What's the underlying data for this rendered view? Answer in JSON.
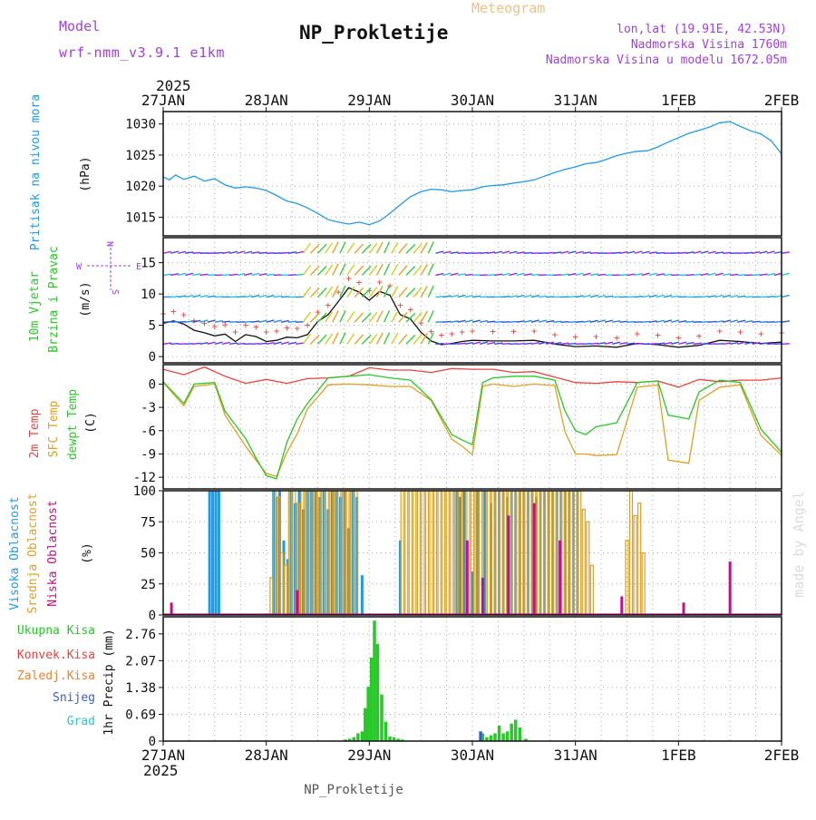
{
  "header": {
    "title": "NP_Prokletije",
    "subtitle": "Meteogram",
    "model_label": "Model",
    "model_name": "wrf-nmm_v3.9.1 e1km",
    "coords": "lon,lat (19.91E, 42.53N)",
    "elevation": "Nadmorska Visina 1760m",
    "model_elevation": "Nadmorska Visina u modelu 1672.05m",
    "footer": "NP_Prokletije",
    "credit": "made by Angel"
  },
  "colors": {
    "pressure": "#1e9be6",
    "temp2m": "#e8433f",
    "sfc": "#e0a020",
    "dewpt": "#28c828",
    "high_cloud": "#1e9be6",
    "mid_cloud": "#e0a020",
    "low_cloud": "#c0108c",
    "precip": "#28c828",
    "snow": "#3a5ad8",
    "gust_marker": "#e8433f",
    "wind_speed": "#111111",
    "title_purple": "#a040e0",
    "meteogram": "#f0c080"
  },
  "chart_data": [
    {
      "type": "line",
      "panel": "pressure",
      "ylabel": [
        "Pritisak na nivou mora",
        "(hPa)"
      ],
      "yticks": [
        "1030",
        "1025",
        "1020",
        "1015"
      ],
      "ylim": [
        1012,
        1032
      ],
      "series": [
        {
          "x": [
            0,
            0.06,
            0.12,
            0.2,
            0.3,
            0.4,
            0.5,
            0.6,
            0.7,
            0.8,
            0.9,
            1.0,
            1.1,
            1.2,
            1.3,
            1.4,
            1.5,
            1.6,
            1.7,
            1.8,
            1.9,
            2.0,
            2.1,
            2.2,
            2.3,
            2.4,
            2.5,
            2.6,
            2.7,
            2.8,
            2.9,
            3.0,
            3.1,
            3.2,
            3.3,
            3.4,
            3.5,
            3.6,
            3.7,
            3.8,
            3.9,
            4.0,
            4.1,
            4.2,
            4.3,
            4.4,
            4.5,
            4.6,
            4.7,
            4.8,
            4.9,
            5.0,
            5.1,
            5.2,
            5.3,
            5.4,
            5.5,
            5.6,
            5.7,
            5.8,
            5.9,
            6.0
          ],
          "values": [
            1021.5,
            1021.0,
            1021.8,
            1021.1,
            1021.6,
            1020.8,
            1021.2,
            1020.2,
            1019.7,
            1019.9,
            1019.7,
            1019.3,
            1018.5,
            1017.6,
            1017.2,
            1016.5,
            1015.6,
            1014.6,
            1014.2,
            1013.9,
            1014.2,
            1013.8,
            1014.4,
            1015.6,
            1017.0,
            1018.3,
            1019.1,
            1019.5,
            1019.4,
            1019.1,
            1019.3,
            1019.4,
            1019.9,
            1020.1,
            1020.2,
            1020.5,
            1020.7,
            1021.0,
            1021.6,
            1022.2,
            1022.7,
            1023.1,
            1023.6,
            1023.8,
            1024.3,
            1024.9,
            1025.3,
            1025.6,
            1025.7,
            1026.3,
            1027.1,
            1027.8,
            1028.5,
            1029.0,
            1029.5,
            1030.2,
            1030.4,
            1029.6,
            1028.9,
            1028.4,
            1027.3,
            1025.2
          ]
        }
      ]
    },
    {
      "type": "line",
      "panel": "wind",
      "ylabel": [
        "10m Vjetar",
        "Brzina i Pravac",
        "(m/s)"
      ],
      "yticks": [
        "15",
        "10",
        "5",
        "0"
      ],
      "ylim": [
        -1,
        19
      ],
      "compass": [
        "N",
        "E",
        "S",
        "W"
      ],
      "series": [
        {
          "name": "speed",
          "x": [
            0,
            0.1,
            0.2,
            0.3,
            0.4,
            0.5,
            0.6,
            0.7,
            0.8,
            0.9,
            1.0,
            1.1,
            1.2,
            1.3,
            1.4,
            1.5,
            1.6,
            1.7,
            1.8,
            1.9,
            2.0,
            2.1,
            2.2,
            2.3,
            2.4,
            2.5,
            2.6,
            2.7,
            2.8,
            2.9,
            3.0,
            3.2,
            3.4,
            3.6,
            3.8,
            4.0,
            4.2,
            4.4,
            4.6,
            4.8,
            5.0,
            5.2,
            5.4,
            5.6,
            5.8,
            6.0
          ],
          "values": [
            5.3,
            5.7,
            5.2,
            4.2,
            3.8,
            3.3,
            3.6,
            2.4,
            3.5,
            3.2,
            2.4,
            2.6,
            3.1,
            3.0,
            3.5,
            5.6,
            6.7,
            8.8,
            11.0,
            10.3,
            9.0,
            10.4,
            9.8,
            6.7,
            6.0,
            3.9,
            2.5,
            1.9,
            2.1,
            2.4,
            2.6,
            2.5,
            2.5,
            2.6,
            2.0,
            1.6,
            1.7,
            1.5,
            2.1,
            1.9,
            1.5,
            1.8,
            2.6,
            2.4,
            2.1,
            2.3
          ]
        }
      ]
    },
    {
      "type": "line",
      "panel": "temperature",
      "ylabel": [
        "2m Temp",
        "SFC Temp",
        "dewpt Temp",
        "(C)"
      ],
      "yticks": [
        "0",
        "-3",
        "-6",
        "-9",
        "-12"
      ],
      "ylim": [
        -13.5,
        2.5
      ],
      "series": [
        {
          "name": "2m Temp",
          "x": [
            0,
            0.2,
            0.4,
            0.6,
            0.8,
            1.0,
            1.2,
            1.4,
            1.6,
            1.8,
            2.0,
            2.2,
            2.4,
            2.6,
            2.8,
            3.0,
            3.2,
            3.4,
            3.6,
            3.8,
            4.0,
            4.2,
            4.4,
            4.6,
            4.8,
            5.0,
            5.2,
            5.4,
            5.6,
            5.8,
            6.0
          ],
          "values": [
            1.9,
            1.2,
            2.2,
            1.0,
            0.1,
            0.6,
            0.1,
            0.7,
            0.8,
            1.0,
            2.1,
            1.8,
            1.8,
            1.5,
            2.0,
            1.9,
            1.9,
            1.5,
            1.6,
            0.9,
            0.2,
            0.1,
            0.3,
            0.2,
            0.4,
            -0.4,
            0.6,
            0.3,
            0.5,
            0.5,
            0.8
          ]
        },
        {
          "name": "SFC Temp",
          "x": [
            0,
            0.2,
            0.3,
            0.5,
            0.6,
            0.8,
            0.9,
            1.0,
            1.1,
            1.2,
            1.3,
            1.4,
            1.6,
            1.8,
            2.0,
            2.2,
            2.4,
            2.6,
            2.8,
            2.9,
            3.0,
            3.1,
            3.2,
            3.4,
            3.6,
            3.8,
            3.9,
            4.0,
            4.1,
            4.2,
            4.4,
            4.6,
            4.8,
            4.9,
            5.1,
            5.2,
            5.4,
            5.6,
            5.8,
            6.0
          ],
          "values": [
            0.2,
            -2.8,
            -0.3,
            0.0,
            -4.0,
            -8.0,
            -9.8,
            -11.5,
            -11.9,
            -8.8,
            -6.4,
            -3.2,
            -0.1,
            0.0,
            -0.1,
            -0.3,
            -0.3,
            -2.1,
            -7.1,
            -8.0,
            -9.1,
            -0.3,
            0.0,
            -0.3,
            0.0,
            -0.2,
            -6.2,
            -9.0,
            -9.0,
            -9.2,
            -9.1,
            -0.4,
            -0.1,
            -9.8,
            -10.2,
            -2.1,
            -0.4,
            -0.1,
            -6.6,
            -9.2
          ]
        },
        {
          "name": "dewpt Temp",
          "x": [
            0,
            0.2,
            0.3,
            0.5,
            0.6,
            0.8,
            0.9,
            1.0,
            1.1,
            1.2,
            1.3,
            1.4,
            1.6,
            1.8,
            2.0,
            2.2,
            2.4,
            2.6,
            2.8,
            2.9,
            3.0,
            3.1,
            3.2,
            3.4,
            3.6,
            3.8,
            3.9,
            4.0,
            4.1,
            4.2,
            4.4,
            4.6,
            4.8,
            4.9,
            5.1,
            5.2,
            5.4,
            5.6,
            5.8,
            6.0
          ],
          "values": [
            0.3,
            -2.5,
            0.0,
            0.2,
            -3.5,
            -7.0,
            -9.5,
            -11.8,
            -12.2,
            -7.5,
            -4.5,
            -2.5,
            0.8,
            1.0,
            1.2,
            0.8,
            0.5,
            -2.0,
            -6.5,
            -7.2,
            -7.8,
            0.2,
            0.8,
            1.0,
            1.0,
            0.5,
            -3.5,
            -6.0,
            -6.5,
            -5.5,
            -5.0,
            0.2,
            0.4,
            -4.0,
            -4.5,
            -1.0,
            0.5,
            0.2,
            -5.8,
            -8.8
          ]
        }
      ]
    },
    {
      "type": "bar",
      "panel": "clouds",
      "ylabel": [
        "Visoka Oblacnost",
        "Srednja Oblacnost",
        "Niska Oblacnost",
        "(%)"
      ],
      "yticks": [
        "100",
        "75",
        "50",
        "25",
        "0"
      ],
      "ylim": [
        0,
        100
      ],
      "series": [
        {
          "name": "Visoka Oblacnost",
          "x": [
            0.45,
            0.48,
            0.51,
            0.54,
            1.07,
            1.1,
            1.13,
            1.17,
            1.21,
            1.24,
            1.28,
            1.32,
            1.36,
            1.4,
            1.44,
            1.48,
            1.52,
            1.56,
            1.6,
            1.64,
            1.68,
            1.72,
            1.76,
            1.8,
            1.84,
            1.88,
            1.93,
            2.3,
            2.85,
            2.88,
            2.92,
            3.0,
            3.05,
            3.12,
            3.18,
            3.22,
            3.26,
            3.3,
            3.34,
            3.38,
            3.42,
            3.46,
            3.5,
            3.54,
            3.58,
            3.62,
            3.66,
            3.7,
            3.74,
            3.78,
            3.82,
            3.86,
            3.9,
            3.94,
            3.98,
            4.02
          ],
          "values": [
            100,
            100,
            100,
            100,
            100,
            95,
            100,
            60,
            45,
            100,
            90,
            100,
            85,
            100,
            100,
            100,
            95,
            100,
            85,
            100,
            100,
            95,
            100,
            70,
            100,
            95,
            32,
            60,
            100,
            95,
            100,
            35,
            100,
            100,
            90,
            100,
            100,
            100,
            95,
            100,
            100,
            100,
            100,
            100,
            100,
            95,
            100,
            100,
            100,
            100,
            100,
            100,
            100,
            100,
            100,
            100
          ]
        },
        {
          "name": "Srednja Oblacnost",
          "x": [
            1.05,
            1.08,
            1.12,
            1.15,
            1.19,
            1.23,
            1.27,
            1.31,
            1.35,
            1.39,
            1.43,
            1.47,
            1.51,
            1.55,
            1.59,
            1.63,
            1.67,
            1.71,
            1.75,
            1.79,
            1.83,
            1.87,
            2.32,
            2.36,
            2.4,
            2.44,
            2.48,
            2.52,
            2.56,
            2.6,
            2.64,
            2.68,
            2.72,
            2.76,
            2.8,
            2.84,
            2.88,
            2.92,
            2.96,
            3.0,
            3.04,
            3.08,
            3.12,
            3.16,
            3.2,
            3.24,
            3.28,
            3.32,
            3.36,
            3.4,
            3.44,
            3.48,
            3.52,
            3.56,
            3.6,
            3.64,
            3.68,
            3.72,
            3.76,
            3.8,
            3.84,
            3.88,
            3.92,
            3.96,
            4.0,
            4.04,
            4.08,
            4.12,
            4.16,
            4.5,
            4.54,
            4.58,
            4.62,
            4.66
          ],
          "values": [
            30,
            100,
            95,
            50,
            40,
            100,
            100,
            90,
            100,
            100,
            100,
            100,
            100,
            100,
            100,
            100,
            100,
            100,
            100,
            100,
            100,
            100,
            100,
            100,
            100,
            100,
            100,
            100,
            100,
            100,
            100,
            100,
            100,
            100,
            100,
            100,
            100,
            100,
            100,
            100,
            100,
            100,
            100,
            100,
            100,
            100,
            100,
            100,
            100,
            100,
            100,
            100,
            100,
            100,
            100,
            100,
            100,
            100,
            100,
            100,
            100,
            100,
            100,
            100,
            100,
            100,
            85,
            75,
            40,
            60,
            100,
            80,
            90,
            50
          ]
        },
        {
          "name": "Niska Oblacnost",
          "x": [
            0.08,
            1.3,
            2.95,
            3.1,
            3.35,
            3.6,
            3.85,
            4.45,
            5.05,
            5.5
          ],
          "values": [
            10,
            20,
            60,
            30,
            80,
            90,
            60,
            15,
            10,
            43
          ]
        }
      ]
    },
    {
      "type": "bar",
      "panel": "precipitation",
      "ylabel": [
        "1hr Precip (mm)"
      ],
      "yticks": [
        "2.76",
        "2.07",
        "1.38",
        "0.69",
        "0"
      ],
      "ylim": [
        0,
        3.2
      ],
      "legend": [
        "Ukupna Kisa",
        "Konvek.Kisa",
        "Zaledj.Kisa",
        "Snijeg",
        "Grad"
      ],
      "series": [
        {
          "name": "Ukupna Kisa",
          "x": [
            1.77,
            1.81,
            1.85,
            1.89,
            1.93,
            1.96,
            1.99,
            2.02,
            2.05,
            2.08,
            2.12,
            2.16,
            2.2,
            2.24,
            2.28,
            2.32,
            3.1,
            3.14,
            3.18,
            3.22,
            3.26,
            3.3,
            3.34,
            3.38,
            3.42,
            3.46,
            3.52
          ],
          "values": [
            0.04,
            0.06,
            0.1,
            0.2,
            0.25,
            0.85,
            1.4,
            2.15,
            3.1,
            2.5,
            1.2,
            0.5,
            0.12,
            0.1,
            0.06,
            0.04,
            0.2,
            0.1,
            0.15,
            0.2,
            0.4,
            0.2,
            0.25,
            0.45,
            0.55,
            0.35,
            0.06
          ]
        },
        {
          "name": "Snijeg",
          "x": [
            3.08
          ],
          "values": [
            0.25
          ]
        }
      ]
    },
    {
      "type": "axis",
      "panel": "time",
      "xticks": [
        "27JAN",
        "28JAN",
        "29JAN",
        "30JAN",
        "31JAN",
        "1FEB",
        "2FEB"
      ],
      "year": "2025"
    }
  ]
}
